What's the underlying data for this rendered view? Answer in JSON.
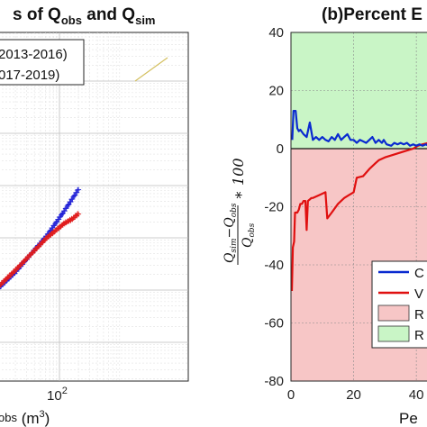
{
  "chart_data": [
    {
      "panel": "left",
      "type": "scatter",
      "title_parts": [
        "s of Q",
        "obs",
        " and Q",
        "sim"
      ],
      "xlabel_parts": [
        "obs",
        " (m",
        "3",
        ")"
      ],
      "x_scale": "log",
      "y_scale": "log",
      "x_tick_labels": [
        {
          "base": "10",
          "exp": "2"
        }
      ],
      "grid": true,
      "legend": {
        "position": "top-left",
        "entries": [
          "2013-2016)",
          "017-2019)"
        ]
      },
      "series": [
        {
          "color": "#1f1fd6",
          "marker": "plus",
          "x": [
            1,
            5,
            20,
            63,
            120,
            160,
            200
          ],
          "y": [
            1,
            4.5,
            22,
            110,
            330,
            560,
            850
          ]
        },
        {
          "color": "#e01b1b",
          "marker": "plus",
          "x": [
            1,
            5,
            20,
            63,
            120,
            160,
            200
          ],
          "y": [
            1,
            4.8,
            24,
            100,
            190,
            230,
            290
          ]
        }
      ],
      "reference_line": {
        "color": "#d4c060"
      }
    },
    {
      "panel": "right",
      "type": "line",
      "title": "(b)Percent E",
      "xlabel": "Pe",
      "ylabel_parts": {
        "num_a": "Q",
        "num_a_sub": "sim",
        "minus": "−",
        "num_b": "Q",
        "num_b_sub": "obs",
        "den": "Q",
        "den_sub": "obs",
        "mult": "∗ 100"
      },
      "xlim": [
        0,
        46
      ],
      "ylim": [
        -80,
        40
      ],
      "x_ticks": [
        0,
        20,
        40
      ],
      "y_ticks": [
        40,
        20,
        0,
        -20,
        -40,
        -60,
        -80
      ],
      "grid": true,
      "regions": [
        {
          "from": 0,
          "to": 40,
          "color": "#c9f5c6"
        },
        {
          "from": -80,
          "to": 0,
          "color": "#f7c6c6"
        }
      ],
      "legend": {
        "position": "bottom-right",
        "entries": [
          {
            "label": "C",
            "kind": "line",
            "color": "#0a2ad0"
          },
          {
            "label": "V",
            "kind": "line",
            "color": "#e01010"
          },
          {
            "label": "R",
            "kind": "patch",
            "color": "#f7c6c6"
          },
          {
            "label": "R",
            "kind": "patch",
            "color": "#c9f5c6"
          }
        ]
      },
      "series": [
        {
          "color": "#0a2ad0",
          "x": [
            0.4,
            0.8,
            1.5,
            2.0,
            2.5,
            3.0,
            4.0,
            5.0,
            6.0,
            7.0,
            8.0,
            9.0,
            10.0,
            11.0,
            12.0,
            13.0,
            14.0,
            15.0,
            16.0,
            17.0,
            18.0,
            19.0,
            20.0,
            21.0,
            22.0,
            23.0,
            24.0,
            25.0,
            26.0,
            27.0,
            28.0,
            29.0,
            29.6,
            30.5,
            32.0,
            33.0,
            34.0,
            35.0,
            36.0,
            37.0,
            38.0,
            39.0,
            40.0,
            41.0,
            42.0,
            43.0,
            44.0
          ],
          "y": [
            3,
            13,
            13,
            7,
            6,
            6.5,
            5,
            4,
            9,
            3,
            4,
            3,
            4,
            3,
            2.5,
            4,
            3,
            5,
            3,
            4,
            5,
            3,
            3,
            2,
            3,
            2.5,
            2,
            3,
            4,
            2,
            3,
            2,
            3,
            1.5,
            1,
            2,
            1.5,
            2,
            1.5,
            2,
            1,
            1.5,
            1,
            1.5,
            1,
            1.5,
            1
          ]
        },
        {
          "color": "#e01010",
          "x": [
            0.3,
            0.6,
            1.0,
            1.3,
            2.0,
            2.5,
            3.0,
            3.5,
            4.0,
            4.6,
            5.0,
            5.4,
            6.0,
            6.5,
            7.0,
            9.0,
            11.0,
            11.6,
            13.0,
            15.0,
            17.0,
            18.5,
            20.0,
            21.0,
            23.0,
            25.0,
            27.0,
            28.0,
            30.0,
            33.0,
            36.0,
            39.0,
            40.5,
            42.0,
            44.0
          ],
          "y": [
            -49,
            -34,
            -32,
            -22,
            -22,
            -21,
            -19,
            -19,
            -18,
            -18,
            -28,
            -18,
            -17.5,
            -17,
            -17,
            -16,
            -15,
            -24,
            -22,
            -19,
            -17,
            -16,
            -15,
            -10,
            -9.5,
            -7,
            -5,
            -4,
            -3,
            -2,
            -1,
            0,
            1,
            1.5,
            2
          ]
        }
      ]
    }
  ]
}
